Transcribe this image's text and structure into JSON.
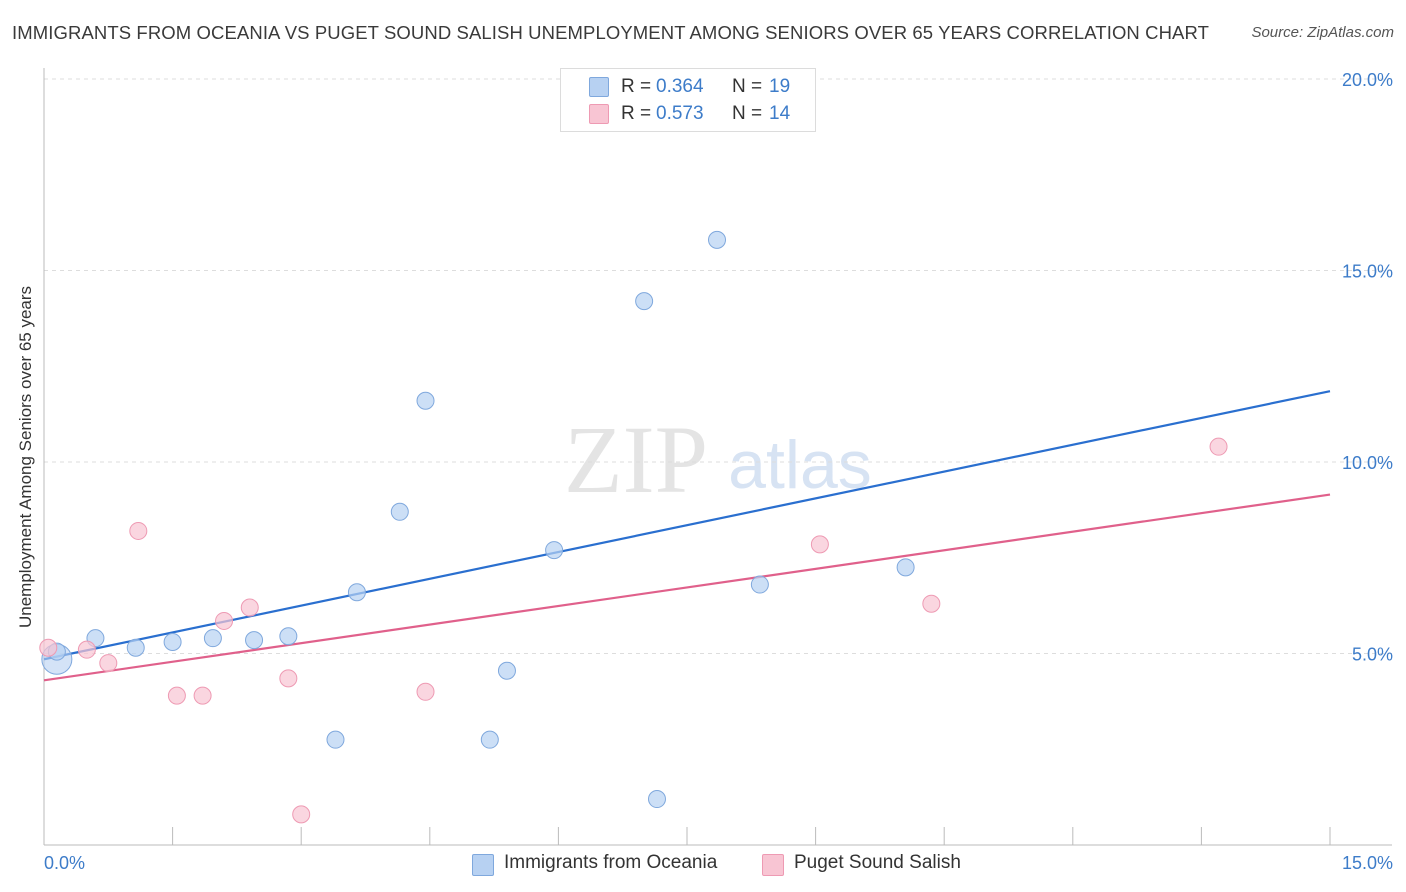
{
  "title": "IMMIGRANTS FROM OCEANIA VS PUGET SOUND SALISH UNEMPLOYMENT AMONG SENIORS OVER 65 YEARS CORRELATION CHART",
  "source": "Source: ZipAtlas.com",
  "watermark": {
    "zip": "ZIP",
    "atlas": "atlas"
  },
  "legend_top": [
    {
      "r_label": "R = ",
      "r_value": "0.364",
      "n_label": "N = ",
      "n_value": "19"
    },
    {
      "r_label": "R = ",
      "r_value": "0.573",
      "n_label": "N = ",
      "n_value": "14"
    }
  ],
  "colors": {
    "blue_fill": "#b7d1f2",
    "blue_stroke": "#7fa8dd",
    "blue_line": "#2a6fcf",
    "pink_fill": "#f8c5d3",
    "pink_stroke": "#ee9ab3",
    "pink_line": "#e0608b",
    "tick_label": "#3d7cc9",
    "grid": "#dddddd"
  },
  "chart_data": {
    "type": "scatter",
    "title": "IMMIGRANTS FROM OCEANIA VS PUGET SOUND SALISH UNEMPLOYMENT AMONG SENIORS OVER 65 YEARS CORRELATION CHART",
    "xlabel": "",
    "ylabel": "Unemployment Among Seniors over 65 years",
    "xlim": [
      0,
      15
    ],
    "ylim": [
      0,
      20
    ],
    "x_tick_labels": [
      "0.0%",
      "15.0%"
    ],
    "y_ticks": [
      5,
      10,
      15,
      20
    ],
    "y_tick_labels": [
      "5.0%",
      "10.0%",
      "15.0%",
      "20.0%"
    ],
    "grid": "horizontal dashed",
    "legend_position": "top-center and bottom",
    "series": [
      {
        "name": "Immigrants from Oceania",
        "color": "#b7d1f2",
        "points": [
          [
            0.15,
            5.05
          ],
          [
            0.6,
            5.4
          ],
          [
            1.07,
            5.15
          ],
          [
            1.5,
            5.3
          ],
          [
            1.97,
            5.4
          ],
          [
            2.45,
            5.35
          ],
          [
            2.85,
            5.45
          ],
          [
            3.4,
            2.75
          ],
          [
            3.65,
            6.6
          ],
          [
            4.15,
            8.7
          ],
          [
            4.45,
            11.6
          ],
          [
            5.4,
            4.55
          ],
          [
            5.2,
            2.75
          ],
          [
            5.95,
            7.7
          ],
          [
            7.0,
            14.2
          ],
          [
            7.15,
            1.2
          ],
          [
            7.85,
            15.8
          ],
          [
            8.35,
            6.8
          ],
          [
            10.05,
            7.25
          ]
        ],
        "trend": [
          [
            0,
            4.85
          ],
          [
            15,
            11.85
          ]
        ]
      },
      {
        "name": "Puget Sound Salish",
        "color": "#f8c5d3",
        "points": [
          [
            0.05,
            5.15
          ],
          [
            0.5,
            5.1
          ],
          [
            0.75,
            4.75
          ],
          [
            1.1,
            8.2
          ],
          [
            1.55,
            3.9
          ],
          [
            1.85,
            3.9
          ],
          [
            2.1,
            5.85
          ],
          [
            2.4,
            6.2
          ],
          [
            2.85,
            4.35
          ],
          [
            3.0,
            0.8
          ],
          [
            4.45,
            4.0
          ],
          [
            9.05,
            7.85
          ],
          [
            10.35,
            6.3
          ],
          [
            13.7,
            10.4
          ]
        ],
        "trend": [
          [
            0,
            4.3
          ],
          [
            15,
            9.15
          ]
        ]
      }
    ]
  }
}
